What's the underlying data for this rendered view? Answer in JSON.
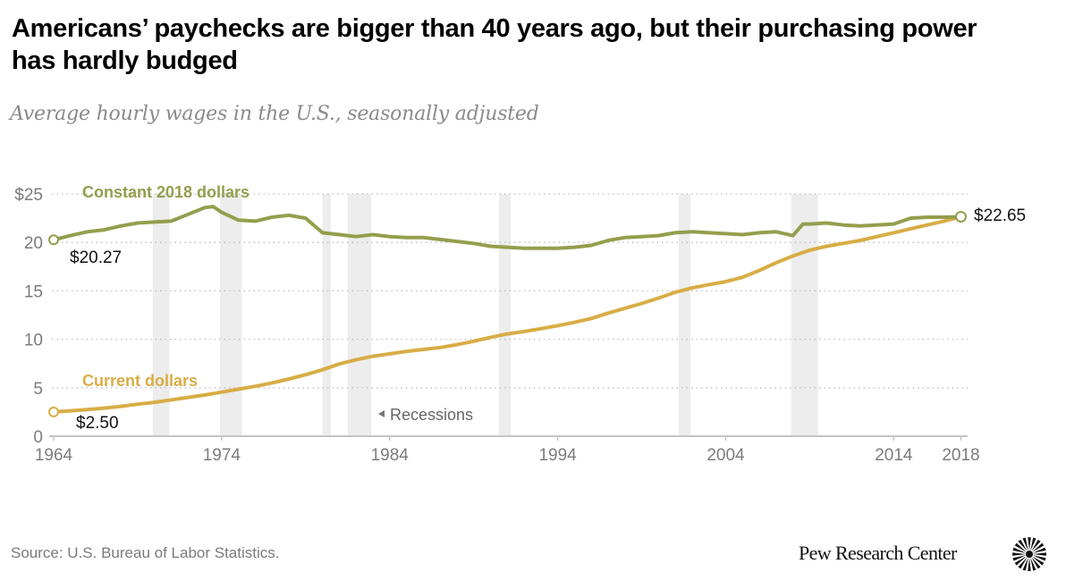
{
  "header": {
    "title": "Americans’ paychecks are bigger than 40 years ago, but their purchasing power has hardly budged",
    "subtitle": "Average hourly wages in the U.S., seasonally adjusted"
  },
  "footer": {
    "source": "Source: U.S. Bureau of Labor Statistics.",
    "brand": "Pew Research Center",
    "logo_icon": "pew-sunburst-logo-icon"
  },
  "colors": {
    "constant": "#949e4d",
    "current": "#d8ad46",
    "recession": "#ecedec",
    "grid": "#bdbdbd",
    "axis": "#c4c4c4",
    "tick_text": "#7c7c7c"
  },
  "chart_data": {
    "type": "line",
    "title": "Americans’ paychecks are bigger than 40 years ago, but their purchasing power has hardly budged",
    "subtitle": "Average hourly wages in the U.S., seasonally adjusted",
    "xlabel": "",
    "ylabel": "",
    "xlim": [
      1964,
      2018.4
    ],
    "ylim": [
      0,
      25
    ],
    "grid": true,
    "x_ticks": [
      1964,
      1974,
      1984,
      1994,
      2004,
      2014,
      2018
    ],
    "x_tick_labels": [
      "1964",
      "1974",
      "1984",
      "1994",
      "2004",
      "2014",
      "2018"
    ],
    "y_ticks": [
      0,
      5,
      10,
      15,
      20,
      25
    ],
    "y_tick_labels": [
      "0",
      "5",
      "10",
      "15",
      "20",
      "$25"
    ],
    "series": [
      {
        "name": "Constant 2018 dollars",
        "label": "Constant 2018 dollars",
        "x": [
          1964,
          1965,
          1966,
          1967,
          1968,
          1969,
          1970,
          1971,
          1972,
          1973,
          1973.5,
          1974,
          1975,
          1976,
          1977,
          1978,
          1979,
          1980,
          1981,
          1982,
          1983,
          1984,
          1985,
          1986,
          1987,
          1988,
          1989,
          1990,
          1991,
          1992,
          1993,
          1994,
          1995,
          1996,
          1997,
          1998,
          1999,
          2000,
          2001,
          2002,
          2003,
          2004,
          2005,
          2006,
          2007,
          2008,
          2008.6,
          2009,
          2010,
          2011,
          2012,
          2013,
          2014,
          2015,
          2016,
          2017,
          2018
        ],
        "values": [
          20.27,
          20.7,
          21.1,
          21.3,
          21.7,
          22.0,
          22.1,
          22.2,
          22.9,
          23.6,
          23.7,
          23.1,
          22.3,
          22.2,
          22.6,
          22.8,
          22.5,
          21.0,
          20.8,
          20.6,
          20.8,
          20.6,
          20.5,
          20.5,
          20.3,
          20.1,
          19.9,
          19.6,
          19.5,
          19.4,
          19.4,
          19.4,
          19.5,
          19.7,
          20.2,
          20.5,
          20.6,
          20.7,
          21.0,
          21.1,
          21.0,
          20.9,
          20.8,
          21.0,
          21.1,
          20.7,
          21.9,
          21.9,
          22.0,
          21.8,
          21.7,
          21.8,
          21.9,
          22.5,
          22.6,
          22.6,
          22.65
        ],
        "start_label": "$20.27",
        "end_label": "$22.65"
      },
      {
        "name": "Current dollars",
        "label": "Current dollars",
        "x": [
          1964,
          1965,
          1966,
          1967,
          1968,
          1969,
          1970,
          1971,
          1972,
          1973,
          1974,
          1975,
          1976,
          1977,
          1978,
          1979,
          1980,
          1981,
          1982,
          1983,
          1984,
          1985,
          1986,
          1987,
          1988,
          1989,
          1990,
          1991,
          1992,
          1993,
          1994,
          1995,
          1996,
          1997,
          1998,
          1999,
          2000,
          2001,
          2002,
          2003,
          2004,
          2005,
          2006,
          2007,
          2008,
          2009,
          2010,
          2011,
          2012,
          2013,
          2014,
          2015,
          2016,
          2017,
          2018
        ],
        "values": [
          2.5,
          2.62,
          2.75,
          2.9,
          3.08,
          3.3,
          3.5,
          3.75,
          4.0,
          4.25,
          4.55,
          4.85,
          5.15,
          5.5,
          5.9,
          6.35,
          6.85,
          7.45,
          7.9,
          8.25,
          8.5,
          8.75,
          8.95,
          9.15,
          9.45,
          9.8,
          10.2,
          10.55,
          10.8,
          11.1,
          11.4,
          11.75,
          12.15,
          12.7,
          13.2,
          13.7,
          14.25,
          14.85,
          15.3,
          15.65,
          15.95,
          16.4,
          17.1,
          17.9,
          18.6,
          19.2,
          19.6,
          19.9,
          20.2,
          20.6,
          21.0,
          21.4,
          21.8,
          22.2,
          22.65
        ],
        "start_label": "$2.50"
      }
    ],
    "recessions": [
      [
        1969.9,
        1970.9
      ],
      [
        1973.9,
        1975.2
      ],
      [
        1980.0,
        1980.5
      ],
      [
        1981.5,
        1982.9
      ],
      [
        1990.5,
        1991.2
      ],
      [
        2001.2,
        2001.9
      ],
      [
        2007.9,
        2009.5
      ]
    ],
    "annotations": [
      {
        "text": "Recessions",
        "marker": "left-pointing-triangle"
      }
    ],
    "legend": "inline-labels"
  }
}
